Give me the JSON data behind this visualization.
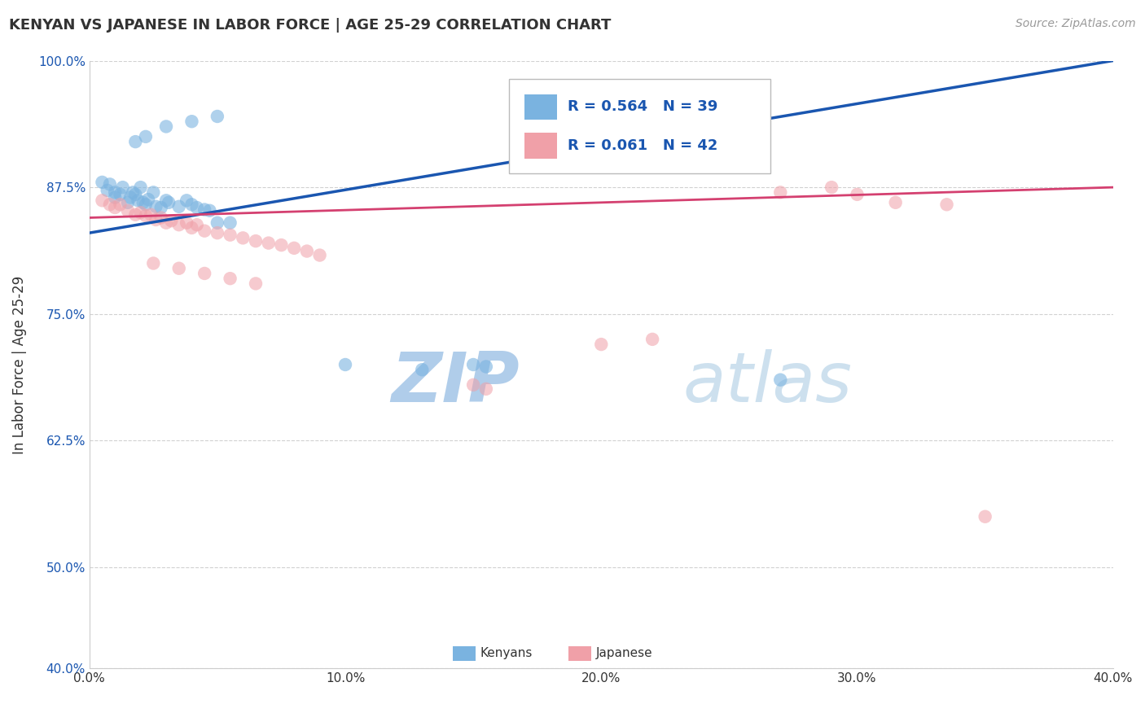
{
  "title": "KENYAN VS JAPANESE IN LABOR FORCE | AGE 25-29 CORRELATION CHART",
  "source_text": "Source: ZipAtlas.com",
  "ylabel": "In Labor Force | Age 25-29",
  "xlim": [
    0.0,
    0.4
  ],
  "ylim": [
    0.4,
    1.0
  ],
  "xtick_labels": [
    "0.0%",
    "10.0%",
    "20.0%",
    "30.0%",
    "40.0%"
  ],
  "xtick_vals": [
    0.0,
    0.1,
    0.2,
    0.3,
    0.4
  ],
  "ytick_labels": [
    "40.0%",
    "50.0%",
    "62.5%",
    "75.0%",
    "87.5%",
    "100.0%"
  ],
  "ytick_vals": [
    0.4,
    0.5,
    0.625,
    0.75,
    0.875,
    1.0
  ],
  "blue_R": 0.564,
  "blue_N": 39,
  "pink_R": 0.061,
  "pink_N": 42,
  "blue_color": "#7ab3e0",
  "pink_color": "#f0a0a8",
  "blue_line_color": "#1a56b0",
  "pink_line_color": "#d44070",
  "background_color": "#ffffff",
  "watermark_color": "#c8dff0",
  "blue_x": [
    0.005,
    0.007,
    0.008,
    0.01,
    0.01,
    0.012,
    0.013,
    0.015,
    0.016,
    0.017,
    0.018,
    0.019,
    0.02,
    0.021,
    0.022,
    0.023,
    0.025,
    0.026,
    0.028,
    0.03,
    0.031,
    0.035,
    0.038,
    0.04,
    0.042,
    0.045,
    0.047,
    0.05,
    0.055,
    0.018,
    0.022,
    0.03,
    0.04,
    0.05,
    0.1,
    0.13,
    0.15,
    0.155,
    0.27
  ],
  "blue_y": [
    0.88,
    0.872,
    0.878,
    0.87,
    0.865,
    0.868,
    0.875,
    0.86,
    0.865,
    0.87,
    0.868,
    0.862,
    0.875,
    0.86,
    0.858,
    0.863,
    0.87,
    0.856,
    0.855,
    0.862,
    0.86,
    0.856,
    0.862,
    0.858,
    0.855,
    0.853,
    0.852,
    0.84,
    0.84,
    0.92,
    0.925,
    0.935,
    0.94,
    0.945,
    0.7,
    0.695,
    0.7,
    0.698,
    0.685
  ],
  "pink_x": [
    0.005,
    0.008,
    0.01,
    0.012,
    0.015,
    0.018,
    0.02,
    0.022,
    0.024,
    0.026,
    0.028,
    0.03,
    0.032,
    0.035,
    0.038,
    0.04,
    0.042,
    0.045,
    0.05,
    0.055,
    0.06,
    0.065,
    0.07,
    0.075,
    0.08,
    0.085,
    0.09,
    0.025,
    0.035,
    0.045,
    0.055,
    0.065,
    0.15,
    0.155,
    0.2,
    0.22,
    0.27,
    0.29,
    0.3,
    0.315,
    0.335,
    0.35
  ],
  "pink_y": [
    0.862,
    0.858,
    0.855,
    0.858,
    0.852,
    0.848,
    0.85,
    0.847,
    0.848,
    0.843,
    0.845,
    0.84,
    0.842,
    0.838,
    0.84,
    0.835,
    0.838,
    0.832,
    0.83,
    0.828,
    0.825,
    0.822,
    0.82,
    0.818,
    0.815,
    0.812,
    0.808,
    0.8,
    0.795,
    0.79,
    0.785,
    0.78,
    0.68,
    0.676,
    0.72,
    0.725,
    0.87,
    0.875,
    0.868,
    0.86,
    0.858,
    0.55
  ]
}
